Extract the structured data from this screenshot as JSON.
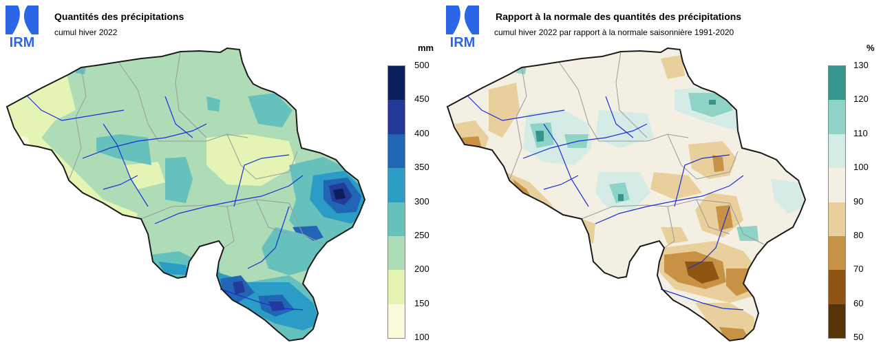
{
  "logo_text": "IRM",
  "left": {
    "title": "Quantités des précipitations",
    "subtitle": "cumul hiver 2022",
    "unit": "mm",
    "legend": [
      {
        "label": "500",
        "color": "#0b1f5c"
      },
      {
        "label": "450",
        "color": "#233a99"
      },
      {
        "label": "400",
        "color": "#2166b4"
      },
      {
        "label": "350",
        "color": "#2a9cc6"
      },
      {
        "label": "300",
        "color": "#66c1bd"
      },
      {
        "label": "250",
        "color": "#aedcb6"
      },
      {
        "label": "200",
        "color": "#e3f4b4"
      },
      {
        "label": "150",
        "color": "#fbfbdc"
      },
      {
        "label": "100",
        "color": ""
      }
    ]
  },
  "right": {
    "title": "Rapport à la normale des quantités des précipitations",
    "subtitle": "cumul hiver 2022 par rapport à la normale saisonnière 1991-2020",
    "unit": "%",
    "legend": [
      {
        "label": "130",
        "color": "#35958c"
      },
      {
        "label": "120",
        "color": "#8ed3c5"
      },
      {
        "label": "110",
        "color": "#d5ebe6"
      },
      {
        "label": "100",
        "color": "#f4efe3"
      },
      {
        "label": "90",
        "color": "#e8cf9c"
      },
      {
        "label": "80",
        "color": "#c89244"
      },
      {
        "label": "70",
        "color": "#8f5512"
      },
      {
        "label": "60",
        "color": "#55340a"
      },
      {
        "label": "50",
        "color": ""
      }
    ]
  }
}
